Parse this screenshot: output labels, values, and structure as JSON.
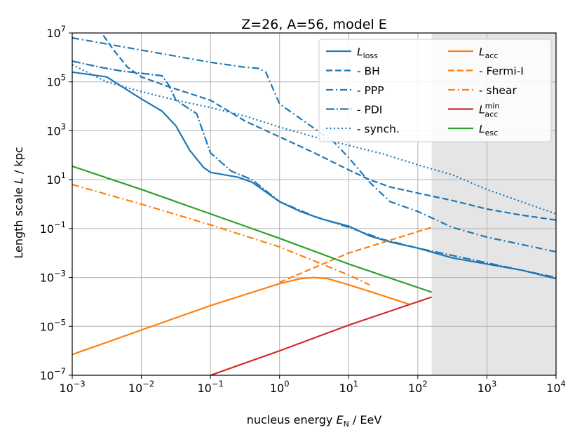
{
  "chart_data": {
    "type": "line",
    "title": "Z=26, A=56, model E",
    "xlabel": {
      "prefix": "nucleus energy ",
      "var": "E",
      "sub": "N",
      "suffix": " / EeV"
    },
    "ylabel": {
      "prefix": "Length scale ",
      "var": "L",
      "suffix": " / kpc"
    },
    "xscale": "log",
    "yscale": "log",
    "xlim_exp": [
      -3,
      4
    ],
    "ylim_exp": [
      -7,
      7
    ],
    "x_ticks": [
      {
        "base": "10",
        "exp": "−3",
        "value": -3
      },
      {
        "base": "10",
        "exp": "−2",
        "value": -2
      },
      {
        "base": "10",
        "exp": "−1",
        "value": -1
      },
      {
        "base": "10",
        "exp": "0",
        "value": 0
      },
      {
        "base": "10",
        "exp": "1",
        "value": 1
      },
      {
        "base": "10",
        "exp": "2",
        "value": 2
      },
      {
        "base": "10",
        "exp": "3",
        "value": 3
      },
      {
        "base": "10",
        "exp": "4",
        "value": 4
      }
    ],
    "y_ticks": [
      {
        "base": "10",
        "exp": "−7",
        "value": -7
      },
      {
        "base": "10",
        "exp": "−5",
        "value": -5
      },
      {
        "base": "10",
        "exp": "−3",
        "value": -3
      },
      {
        "base": "10",
        "exp": "−1",
        "value": -1
      },
      {
        "base": "10",
        "exp": "1",
        "value": 1
      },
      {
        "base": "10",
        "exp": "3",
        "value": 3
      },
      {
        "base": "10",
        "exp": "5",
        "value": 5
      },
      {
        "base": "10",
        "exp": "7",
        "value": 7
      }
    ],
    "grid": true,
    "shaded_region_log10_x": [
      2.2,
      4
    ],
    "legend_position": "top-right",
    "legend_columns": 2,
    "series": [
      {
        "id": "L_loss",
        "legend": {
          "var": "L",
          "sub": "loss"
        },
        "color": "#1f77b4",
        "dash": "solid",
        "log10_points": [
          [
            -3,
            5.4
          ],
          [
            -2.5,
            5.2
          ],
          [
            -2,
            4.3
          ],
          [
            -1.7,
            3.8
          ],
          [
            -1.5,
            3.2
          ],
          [
            -1.3,
            2.2
          ],
          [
            -1.1,
            1.5
          ],
          [
            -1,
            1.3
          ],
          [
            -0.6,
            1.1
          ],
          [
            -0.4,
            0.9
          ],
          [
            0,
            0.1
          ],
          [
            0.3,
            -0.3
          ],
          [
            0.6,
            -0.6
          ],
          [
            1,
            -0.9
          ],
          [
            1.3,
            -1.3
          ],
          [
            1.6,
            -1.55
          ],
          [
            2,
            -1.8
          ],
          [
            2.5,
            -2.2
          ],
          [
            3,
            -2.45
          ],
          [
            3.5,
            -2.7
          ],
          [
            4,
            -3.05
          ]
        ]
      },
      {
        "id": "BH",
        "legend": {
          "text": "  - BH"
        },
        "color": "#1f77b4",
        "dash": "dashed",
        "log10_points": [
          [
            -2.55,
            6.9
          ],
          [
            -2.4,
            6.3
          ],
          [
            -2.2,
            5.6
          ],
          [
            -2,
            5.2
          ],
          [
            -1.6,
            4.8
          ],
          [
            -1,
            4.25
          ],
          [
            -0.5,
            3.4
          ],
          [
            0,
            2.75
          ],
          [
            0.5,
            2.1
          ],
          [
            1,
            1.4
          ],
          [
            1.3,
            1.0
          ],
          [
            1.6,
            0.7
          ],
          [
            2,
            0.45
          ],
          [
            2.5,
            0.15
          ],
          [
            3,
            -0.2
          ],
          [
            3.5,
            -0.45
          ],
          [
            4,
            -0.65
          ]
        ]
      },
      {
        "id": "PPP",
        "legend": {
          "text": "  - PPP"
        },
        "color": "#1f77b4",
        "dash": "dashdot",
        "log10_points": [
          [
            -3,
            6.8
          ],
          [
            -2.5,
            6.55
          ],
          [
            -2,
            6.3
          ],
          [
            -1.5,
            6.05
          ],
          [
            -1,
            5.8
          ],
          [
            -0.5,
            5.6
          ],
          [
            -0.3,
            5.55
          ],
          [
            -0.2,
            5.4
          ],
          [
            0,
            4.1
          ],
          [
            0.5,
            3.1
          ],
          [
            0.8,
            2.5
          ],
          [
            1,
            1.9
          ],
          [
            1.3,
            0.9
          ],
          [
            1.6,
            0.1
          ],
          [
            2,
            -0.3
          ],
          [
            2.5,
            -0.95
          ],
          [
            3,
            -1.35
          ],
          [
            3.5,
            -1.65
          ],
          [
            4,
            -1.95
          ]
        ]
      },
      {
        "id": "PDI",
        "legend": {
          "text": "  - PDI"
        },
        "color": "#1f77b4",
        "dash": "dashdotdense",
        "log10_points": [
          [
            -3,
            5.85
          ],
          [
            -2.6,
            5.6
          ],
          [
            -2.3,
            5.45
          ],
          [
            -2,
            5.35
          ],
          [
            -1.7,
            5.25
          ],
          [
            -1.6,
            4.85
          ],
          [
            -1.5,
            4.25
          ],
          [
            -1.2,
            3.7
          ],
          [
            -1,
            2.1
          ],
          [
            -0.7,
            1.35
          ],
          [
            -0.4,
            1.0
          ],
          [
            0,
            0.1
          ],
          [
            0.5,
            -0.5
          ],
          [
            1,
            -0.95
          ],
          [
            1.5,
            -1.45
          ],
          [
            2,
            -1.8
          ],
          [
            3,
            -2.4
          ],
          [
            4,
            -3.0
          ]
        ]
      },
      {
        "id": "synch",
        "legend": {
          "text": "  - synch."
        },
        "color": "#1f77b4",
        "dash": "dotted",
        "log10_points": [
          [
            -3,
            5.7
          ],
          [
            -2.5,
            5.0
          ],
          [
            -2,
            4.6
          ],
          [
            -1.5,
            4.25
          ],
          [
            -1,
            3.95
          ],
          [
            -0.5,
            3.6
          ],
          [
            0,
            3.15
          ],
          [
            0.5,
            2.75
          ],
          [
            1,
            2.4
          ],
          [
            1.5,
            2.05
          ],
          [
            2,
            1.6
          ],
          [
            2.5,
            1.2
          ],
          [
            3,
            0.6
          ],
          [
            3.5,
            0.1
          ],
          [
            4,
            -0.4
          ]
        ]
      },
      {
        "id": "L_acc",
        "legend": {
          "var": "L",
          "sub": "acc"
        },
        "color": "#ff7f0e",
        "dash": "solid",
        "log10_points": [
          [
            -3,
            -6.15
          ],
          [
            -2,
            -5.15
          ],
          [
            -1,
            -4.15
          ],
          [
            0,
            -3.25
          ],
          [
            0.3,
            -3.05
          ],
          [
            0.5,
            -3.0
          ],
          [
            0.7,
            -3.05
          ],
          [
            1,
            -3.3
          ],
          [
            1.5,
            -3.75
          ],
          [
            1.88,
            -4.1
          ]
        ]
      },
      {
        "id": "FermiI",
        "legend": {
          "text": "  - Fermi-I"
        },
        "color": "#ff7f0e",
        "dash": "dashed",
        "log10_points": [
          [
            0,
            -3.2
          ],
          [
            1,
            -2.0
          ],
          [
            2.2,
            -0.95
          ]
        ]
      },
      {
        "id": "shear",
        "legend": {
          "text": "  - shear"
        },
        "color": "#ff7f0e",
        "dash": "dashdot",
        "log10_points": [
          [
            -3,
            0.8
          ],
          [
            -2,
            0.0
          ],
          [
            -1,
            -0.85
          ],
          [
            0,
            -1.75
          ],
          [
            1,
            -2.9
          ],
          [
            1.3,
            -3.3
          ]
        ]
      },
      {
        "id": "L_acc_min",
        "legend": {
          "var": "L",
          "sub": "acc",
          "sup": "min"
        },
        "color": "#d62728",
        "dash": "solid",
        "log10_points": [
          [
            -1,
            -7.0
          ],
          [
            0,
            -6.0
          ],
          [
            1,
            -4.95
          ],
          [
            2.2,
            -3.8
          ]
        ]
      },
      {
        "id": "L_esc",
        "legend": {
          "var": "L",
          "sub": "esc"
        },
        "color": "#2ca02c",
        "dash": "solid",
        "log10_points": [
          [
            -3,
            1.55
          ],
          [
            -2,
            0.6
          ],
          [
            -1,
            -0.4
          ],
          [
            0,
            -1.4
          ],
          [
            1,
            -2.45
          ],
          [
            2.2,
            -3.6
          ]
        ]
      }
    ]
  }
}
